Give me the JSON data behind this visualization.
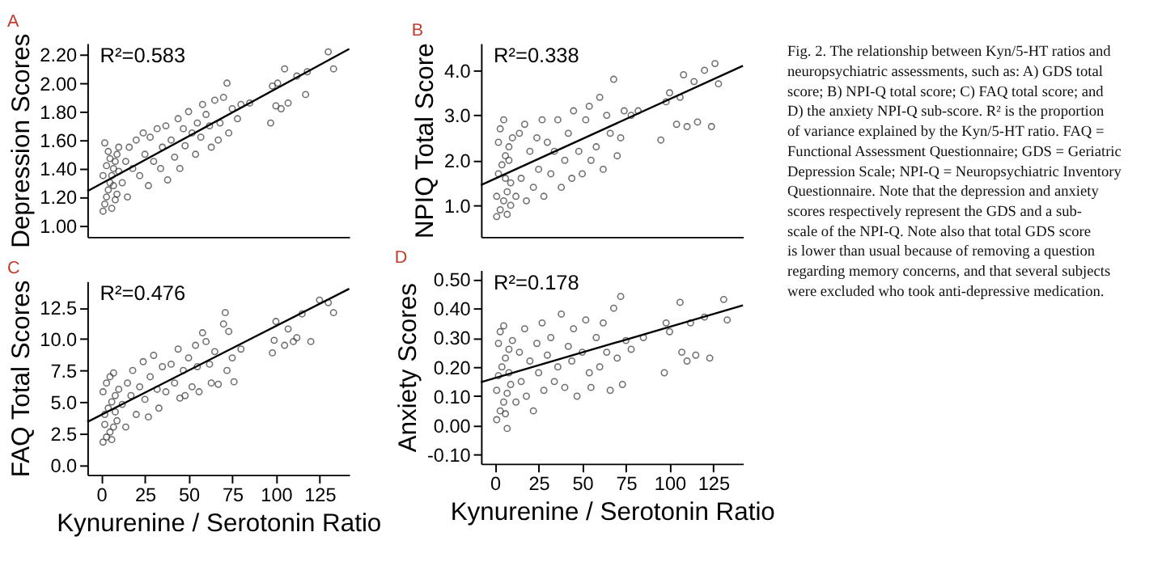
{
  "chart_data": [
    {
      "type": "scatter",
      "title": "A",
      "ylabel": "Depression Scores",
      "annotations": [
        "R²=0.583"
      ],
      "xlim": [
        -8,
        142
      ],
      "ylim": [
        0.92,
        2.28
      ],
      "yticks": [
        {
          "value": 1.0,
          "label": "1.00"
        },
        {
          "value": 1.2,
          "label": "1.20"
        },
        {
          "value": 1.4,
          "label": "1.40"
        },
        {
          "value": 1.6,
          "label": "1.60"
        },
        {
          "value": 1.8,
          "label": "1.80"
        },
        {
          "value": 2.0,
          "label": "2.00"
        },
        {
          "value": 2.2,
          "label": "2.20"
        }
      ],
      "tick_labels": "y",
      "marker": "circle",
      "series": [
        {
          "type": "scatter",
          "color": "#333333",
          "x": [
            1,
            2,
            3,
            4,
            5,
            6,
            7,
            8,
            9,
            10,
            2,
            4,
            6,
            8,
            3,
            5,
            7,
            9,
            1,
            10,
            12,
            14,
            15,
            16,
            18,
            20,
            22,
            24,
            25,
            27,
            28,
            30,
            32,
            34,
            35,
            37,
            38,
            40,
            42,
            44,
            45,
            47,
            48,
            50,
            52,
            54,
            55,
            57,
            58,
            60,
            62,
            63,
            65,
            67,
            68,
            70,
            72,
            73,
            75,
            78,
            80,
            85,
            97,
            98,
            100,
            101,
            103,
            105,
            107,
            112,
            117,
            118,
            130,
            133
          ],
          "values": [
            1.1,
            1.15,
            1.2,
            1.25,
            1.3,
            1.35,
            1.4,
            1.45,
            1.5,
            1.55,
            1.58,
            1.52,
            1.12,
            1.18,
            1.42,
            1.47,
            1.28,
            1.22,
            1.35,
            1.38,
            1.3,
            1.45,
            1.2,
            1.55,
            1.4,
            1.6,
            1.35,
            1.65,
            1.5,
            1.28,
            1.62,
            1.45,
            1.68,
            1.4,
            1.55,
            1.7,
            1.32,
            1.6,
            1.48,
            1.75,
            1.4,
            1.68,
            1.56,
            1.8,
            1.65,
            1.5,
            1.72,
            1.62,
            1.85,
            1.78,
            1.7,
            1.55,
            1.88,
            1.6,
            1.72,
            1.9,
            2.0,
            1.65,
            1.82,
            1.75,
            1.85,
            1.86,
            1.72,
            1.98,
            1.84,
            2.0,
            1.82,
            2.1,
            1.86,
            2.05,
            1.92,
            2.08,
            2.22,
            2.1
          ]
        },
        {
          "type": "line",
          "color": "#000000",
          "marker": "none",
          "x": [
            -8,
            142
          ],
          "values": [
            1.24,
            2.24
          ]
        }
      ]
    },
    {
      "type": "scatter",
      "title": "B",
      "ylabel": "NPIQ Total Score",
      "annotations": [
        "R²=0.338"
      ],
      "xlim": [
        -8,
        142
      ],
      "ylim": [
        0.3,
        4.6
      ],
      "yticks": [
        {
          "value": 1,
          "label": "1.0"
        },
        {
          "value": 2,
          "label": "2.0"
        },
        {
          "value": 3,
          "label": "3.0"
        },
        {
          "value": 4,
          "label": "4.0"
        }
      ],
      "tick_labels": "y",
      "marker": "circle",
      "series": [
        {
          "type": "scatter",
          "color": "#333333",
          "x": [
            1,
            3,
            5,
            7,
            9,
            2,
            4,
            6,
            8,
            10,
            3,
            5,
            7,
            9,
            1,
            2,
            6,
            8,
            12,
            14,
            15,
            17,
            18,
            20,
            22,
            24,
            25,
            27,
            28,
            30,
            32,
            34,
            36,
            38,
            40,
            42,
            44,
            45,
            48,
            50,
            52,
            54,
            55,
            58,
            60,
            62,
            64,
            66,
            68,
            70,
            72,
            74,
            78,
            82,
            95,
            98,
            100,
            104,
            106,
            108,
            110,
            114,
            116,
            120,
            124,
            126,
            128
          ],
          "values": [
            0.75,
            0.9,
            1.1,
            1.3,
            1.5,
            1.7,
            1.9,
            2.1,
            2.3,
            2.5,
            2.7,
            2.9,
            0.8,
            1.0,
            1.2,
            2.4,
            1.6,
            2.0,
            1.2,
            2.6,
            1.6,
            2.8,
            1.1,
            2.2,
            1.4,
            2.5,
            1.8,
            2.9,
            1.2,
            2.4,
            1.7,
            2.2,
            2.9,
            1.4,
            2.0,
            2.6,
            1.6,
            3.1,
            2.2,
            1.7,
            2.9,
            3.2,
            2.0,
            2.3,
            3.4,
            1.8,
            3.0,
            2.6,
            3.8,
            2.1,
            2.5,
            3.1,
            3.0,
            3.1,
            2.45,
            3.3,
            3.5,
            2.8,
            3.4,
            3.9,
            2.75,
            3.75,
            2.85,
            4.0,
            2.75,
            4.15,
            3.7
          ]
        },
        {
          "type": "line",
          "color": "#000000",
          "marker": "none",
          "x": [
            -8,
            142
          ],
          "values": [
            1.45,
            4.1
          ]
        }
      ]
    },
    {
      "type": "scatter",
      "title": "C",
      "xlabel": "Kynurenine / Serotonin Ratio",
      "ylabel": "FAQ Total Scores",
      "annotations": [
        "R²=0.476"
      ],
      "xlim": [
        -8,
        142
      ],
      "xticks": [
        0,
        25,
        50,
        75,
        100,
        125
      ],
      "ylim": [
        -0.8,
        14.6
      ],
      "yticks": [
        {
          "value": 0,
          "label": "0.0"
        },
        2.5,
        {
          "value": 5,
          "label": "5.0"
        },
        7.5,
        {
          "value": 10,
          "label": "10.0"
        },
        12.5
      ],
      "marker": "circle",
      "series": [
        {
          "type": "scatter",
          "color": "#333333",
          "x": [
            1,
            3,
            5,
            7,
            9,
            2,
            4,
            6,
            8,
            10,
            3,
            5,
            7,
            1,
            2,
            6,
            8,
            12,
            14,
            15,
            17,
            18,
            20,
            22,
            24,
            25,
            27,
            28,
            30,
            32,
            33,
            35,
            37,
            40,
            42,
            44,
            45,
            47,
            48,
            50,
            52,
            54,
            55,
            56,
            58,
            60,
            62,
            63,
            65,
            67,
            70,
            71,
            72,
            73,
            75,
            76,
            80,
            98,
            99,
            100,
            105,
            107,
            110,
            112,
            115,
            120,
            125,
            130,
            133
          ],
          "values": [
            1.8,
            2.2,
            2.6,
            3.0,
            3.5,
            4.0,
            4.5,
            5.0,
            5.5,
            6.0,
            6.5,
            7.0,
            7.3,
            5.8,
            3.2,
            2.0,
            4.2,
            4.8,
            3.0,
            6.5,
            5.5,
            7.5,
            4.0,
            6.2,
            8.2,
            5.2,
            3.8,
            7.0,
            8.7,
            6.0,
            4.5,
            7.8,
            5.8,
            8.0,
            6.5,
            9.2,
            5.3,
            7.5,
            5.5,
            8.5,
            6.2,
            9.5,
            7.8,
            5.8,
            10.5,
            9.8,
            8.0,
            6.5,
            9.0,
            6.4,
            11.2,
            12.1,
            7.5,
            10.6,
            8.5,
            6.6,
            9.2,
            8.9,
            9.9,
            11.4,
            9.5,
            10.8,
            9.8,
            10.1,
            12.0,
            9.8,
            13.1,
            12.9,
            12.1
          ]
        },
        {
          "type": "line",
          "color": "#000000",
          "marker": "none",
          "x": [
            -8,
            142
          ],
          "values": [
            3.4,
            14.0
          ]
        }
      ]
    },
    {
      "type": "scatter",
      "title": "D",
      "xlabel": "Kynurenine / Serotonin Ratio",
      "ylabel": "Anxiety Scores",
      "annotations": [
        "R²=0.178"
      ],
      "xlim": [
        -8,
        142
      ],
      "xticks": [
        0,
        25,
        50,
        75,
        100,
        125
      ],
      "ylim": [
        -0.13,
        0.53
      ],
      "yticks": [
        {
          "value": -0.1,
          "label": "-0.10"
        },
        {
          "value": 0,
          "label": "0.00"
        },
        {
          "value": 0.1,
          "label": "0.10"
        },
        {
          "value": 0.2,
          "label": "0.20"
        },
        {
          "value": 0.3,
          "label": "0.30"
        },
        {
          "value": 0.4,
          "label": "0.40"
        },
        {
          "value": 0.5,
          "label": "0.50"
        }
      ],
      "marker": "circle",
      "series": [
        {
          "type": "scatter",
          "color": "#333333",
          "x": [
            1,
            3,
            5,
            7,
            9,
            2,
            4,
            6,
            8,
            10,
            3,
            5,
            7,
            1,
            2,
            6,
            8,
            12,
            14,
            15,
            17,
            18,
            20,
            22,
            24,
            25,
            27,
            28,
            30,
            32,
            34,
            36,
            38,
            40,
            42,
            44,
            45,
            47,
            50,
            52,
            54,
            55,
            58,
            60,
            62,
            64,
            66,
            68,
            70,
            72,
            73,
            75,
            78,
            85,
            97,
            98,
            100,
            106,
            107,
            110,
            112,
            115,
            120,
            123,
            131,
            133
          ],
          "values": [
            0.02,
            0.05,
            0.08,
            0.11,
            0.14,
            0.17,
            0.2,
            0.23,
            0.26,
            0.29,
            0.32,
            0.34,
            -0.01,
            0.12,
            0.28,
            0.04,
            0.18,
            0.08,
            0.25,
            0.15,
            0.33,
            0.1,
            0.22,
            0.05,
            0.28,
            0.18,
            0.35,
            0.12,
            0.24,
            0.3,
            0.15,
            0.2,
            0.38,
            0.13,
            0.27,
            0.22,
            0.33,
            0.1,
            0.25,
            0.36,
            0.18,
            0.13,
            0.3,
            0.2,
            0.35,
            0.25,
            0.12,
            0.4,
            0.23,
            0.44,
            0.14,
            0.29,
            0.26,
            0.3,
            0.18,
            0.35,
            0.32,
            0.42,
            0.25,
            0.22,
            0.35,
            0.24,
            0.37,
            0.23,
            0.43,
            0.36
          ]
        },
        {
          "type": "line",
          "color": "#000000",
          "marker": "none",
          "x": [
            -8,
            142
          ],
          "values": [
            0.148,
            0.41
          ]
        }
      ]
    },
    {
      "type": "other",
      "annotations": [
        "Fig. 2. The relationship between Kyn/5-HT ratios and neuropsychiatric assessments, such as: A) GDS total score; B) NPI-Q total score; C) FAQ total score; and D) the anxiety NPI-Q sub-score. R² is the proportion of variance explained by the Kyn/5-HT ratio. FAQ = Functional Assessment Questionnaire; GDS = Geriatric Depression Scale; NPI-Q = Neuropsychiatric Inventory Questionnaire. Note that the depression and anxiety scores respectively represent the GDS and a sub-scale of the NPI-Q. Note also that total GDS score is lower than usual because of removing a question regarding memory concerns, and that several subjects were excluded who took anti-depressive medication."
      ]
    }
  ]
}
